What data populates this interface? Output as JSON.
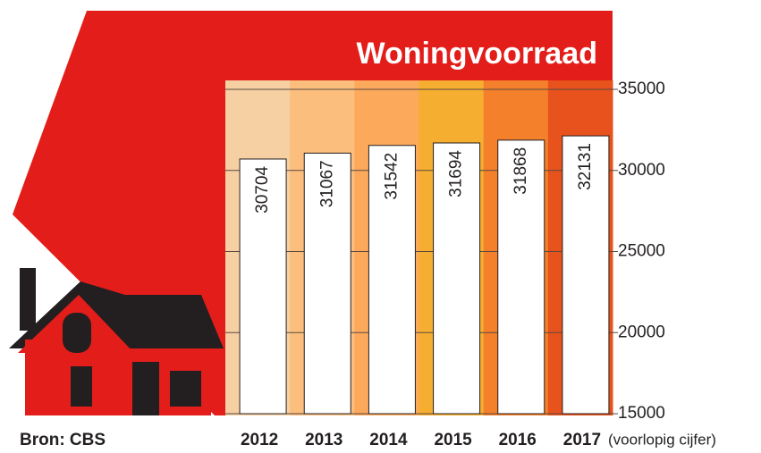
{
  "chart_data": {
    "type": "bar",
    "title": "Woningvoorraad",
    "categories": [
      "2012",
      "2013",
      "2014",
      "2015",
      "2016",
      "2017"
    ],
    "values": [
      30704,
      31067,
      31542,
      31694,
      31868,
      32131
    ],
    "color": "#ffffff",
    "column_colors": [
      "#f6d0a2",
      "#fbbe7c",
      "#fca95c",
      "#f6ae30",
      "#f5802c",
      "#e8521c"
    ],
    "ylim": [
      15000,
      35000
    ],
    "yticks": [
      15000,
      20000,
      25000,
      30000,
      35000
    ],
    "grid": true,
    "source": "Bron: CBS",
    "annotation": "(voorlopig cijfer)"
  }
}
